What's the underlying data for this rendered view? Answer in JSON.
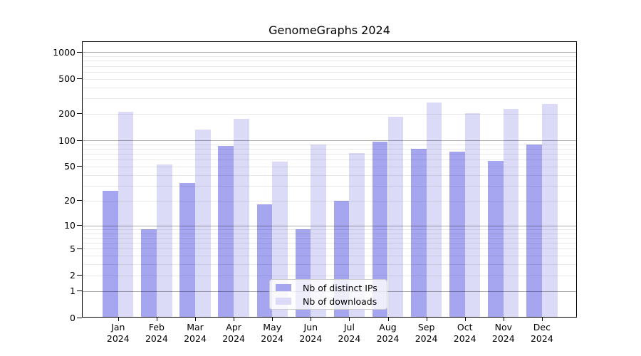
{
  "chart_data": {
    "type": "bar",
    "title": "GenomeGraphs 2024",
    "categories": [
      "Jan 2024",
      "Feb 2024",
      "Mar 2024",
      "Apr 2024",
      "May 2024",
      "Jun 2024",
      "Jul 2024",
      "Aug 2024",
      "Sep 2024",
      "Oct 2024",
      "Nov 2024",
      "Dec 2024"
    ],
    "series": [
      {
        "name": "Nb of distinct IPs",
        "color": "#a5a5f0",
        "values": [
          26,
          9,
          32,
          87,
          18,
          9,
          20,
          97,
          80,
          74,
          58,
          90
        ]
      },
      {
        "name": "Nb of downloads",
        "color": "#dbdbf8",
        "values": [
          212,
          53,
          132,
          175,
          57,
          90,
          71,
          184,
          270,
          204,
          229,
          259
        ]
      }
    ],
    "xlabel": "",
    "ylabel": "",
    "yscale": "log10(value+1)",
    "ylim": [
      0,
      1350
    ],
    "y_tick_values": [
      0,
      1,
      2,
      5,
      10,
      20,
      50,
      100,
      200,
      500,
      1000
    ],
    "y_tick_labels": [
      "0",
      "1",
      "2",
      "5",
      "10",
      "20",
      "50",
      "100",
      "200",
      "500",
      "1000"
    ],
    "major_grid_values": [
      1,
      10,
      100,
      1000
    ],
    "minor_grid_values": [
      2,
      3,
      4,
      5,
      6,
      7,
      8,
      9,
      20,
      30,
      40,
      50,
      60,
      70,
      80,
      90,
      200,
      300,
      400,
      500,
      600,
      700,
      800,
      900
    ],
    "grid": "on",
    "legend_position": "lower center"
  },
  "colors": {
    "background": "#ffffff",
    "axis": "#000000",
    "major_gridline": "rgba(0,0,0,0.33)",
    "minor_gridline": "rgba(0,0,0,0.085)",
    "bar_distinct_ips": "#a5a5f0",
    "bar_downloads": "#dbdbf8",
    "legend_border": "#cccccc"
  }
}
